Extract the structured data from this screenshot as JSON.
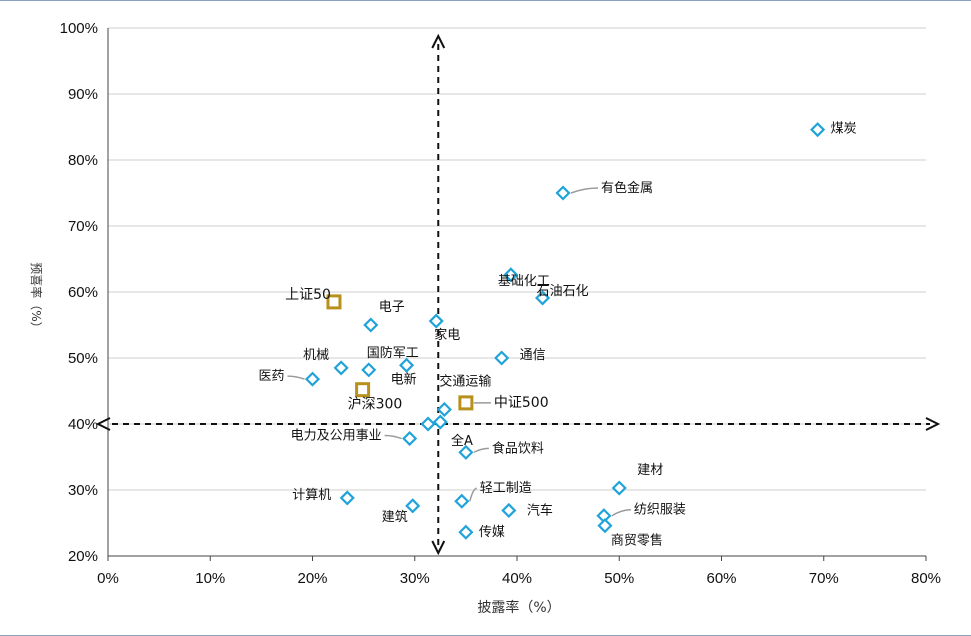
{
  "chart_data": {
    "type": "scatter",
    "title": "",
    "xlabel": "披露率（%）",
    "ylabel": "预喜率（%）",
    "xlim": [
      0,
      80
    ],
    "ylim": [
      20,
      100
    ],
    "xticks": [
      "0%",
      "10%",
      "20%",
      "30%",
      "40%",
      "50%",
      "60%",
      "70%",
      "80%"
    ],
    "yticks": [
      "20%",
      "30%",
      "40%",
      "50%",
      "60%",
      "70%",
      "80%",
      "90%",
      "100%"
    ],
    "grid": "horizontal",
    "reference_lines": {
      "x": 32.3,
      "y": 40
    },
    "series": [
      {
        "name": "行业",
        "marker": "diamond",
        "color": "#1fa3d8",
        "points": [
          {
            "label": "煤炭",
            "x": 69.4,
            "y": 84.6
          },
          {
            "label": "有色金属",
            "x": 44.5,
            "y": 75.0
          },
          {
            "label": "基础化工",
            "x": 39.4,
            "y": 62.6
          },
          {
            "label": "石油石化",
            "x": 42.5,
            "y": 59.1
          },
          {
            "label": "电子",
            "x": 25.7,
            "y": 55.0
          },
          {
            "label": "家电",
            "x": 32.1,
            "y": 55.6
          },
          {
            "label": "通信",
            "x": 38.5,
            "y": 50.0
          },
          {
            "label": "机械",
            "x": 22.8,
            "y": 48.5
          },
          {
            "label": "国防军工",
            "x": 25.5,
            "y": 48.2
          },
          {
            "label": "电新",
            "x": 29.2,
            "y": 48.9
          },
          {
            "label": "医药",
            "x": 20.0,
            "y": 46.8
          },
          {
            "label": "交通运输",
            "x": 32.9,
            "y": 42.2
          },
          {
            "label": "全A",
            "x": 31.3,
            "y": 40.0
          },
          {
            "label": "",
            "x": 32.5,
            "y": 40.3
          },
          {
            "label": "电力及公用事业",
            "x": 29.5,
            "y": 37.8
          },
          {
            "label": "食品饮料",
            "x": 35.0,
            "y": 35.7
          },
          {
            "label": "建材",
            "x": 50.0,
            "y": 30.3
          },
          {
            "label": "计算机",
            "x": 23.4,
            "y": 28.8
          },
          {
            "label": "轻工制造",
            "x": 34.6,
            "y": 28.3
          },
          {
            "label": "建筑",
            "x": 29.8,
            "y": 27.6
          },
          {
            "label": "汽车",
            "x": 39.2,
            "y": 26.9
          },
          {
            "label": "纺织服装",
            "x": 48.5,
            "y": 26.1
          },
          {
            "label": "商贸零售",
            "x": 48.6,
            "y": 24.6
          },
          {
            "label": "传媒",
            "x": 35.0,
            "y": 23.6
          }
        ]
      },
      {
        "name": "指数",
        "marker": "square",
        "color": "#b8901c",
        "points": [
          {
            "label": "上证50",
            "x": 22.1,
            "y": 58.5
          },
          {
            "label": "沪深300",
            "x": 24.9,
            "y": 45.2
          },
          {
            "label": "中证500",
            "x": 35.0,
            "y": 43.2
          }
        ]
      }
    ]
  }
}
